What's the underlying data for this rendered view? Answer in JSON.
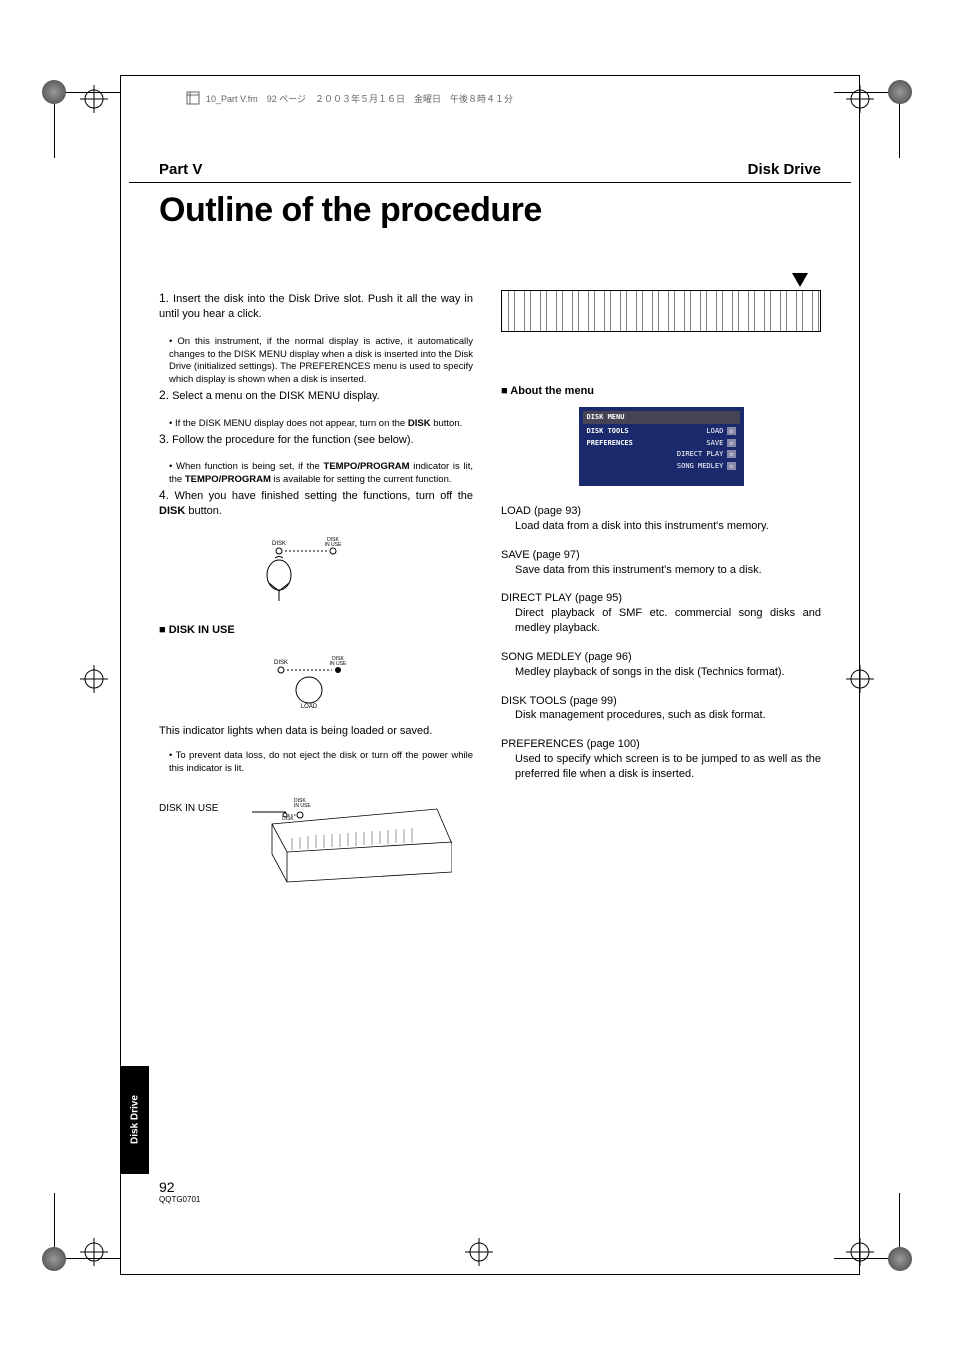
{
  "header": {
    "file_info": "10_Part V.fm　92 ページ　２００３年５月１６日　金曜日　午後８時４１分",
    "part_label": "Part V",
    "section_label": "Disk Drive",
    "title": "Outline of the procedure"
  },
  "steps": [
    {
      "num": "1.",
      "text": "Insert the disk into the Disk Drive slot. Push it all the way in until you hear a click.",
      "bullets": [
        "On this instrument, if the normal display is active, it automatically changes to the DISK MENU display when a disk is inserted into the Disk Drive (initialized settings). The PREFERENCES menu is used to specify which display is shown when a disk is inserted."
      ]
    },
    {
      "num": "2.",
      "text": "Select a menu on the DISK MENU display.",
      "bullets": [
        "If the DISK MENU display does not appear, turn on the <b>DISK</b> button."
      ]
    },
    {
      "num": "3.",
      "text": "Follow the procedure for the function (see below).",
      "bullets": [
        "When function is being set, if the <b>TEMPO/PROGRAM</b> indicator is lit, the <b>TEMPO/PROGRAM</b> is available for setting the current function."
      ]
    },
    {
      "num": "4.",
      "text": "When you have finished setting the functions, turn off the <b>DISK</b> button.",
      "bullets": []
    }
  ],
  "disk_in_use": {
    "heading": "DISK IN USE",
    "desc": "This indicator lights when data is being loaded or saved.",
    "bullet": "To prevent data loss, do not eject the disk or turn off the power while this indicator is lit.",
    "pointer_label": "DISK IN USE"
  },
  "disk_labels": {
    "disk": "DISK",
    "in_use": "DISK\nIN USE",
    "load": "LOAD"
  },
  "about_menu": {
    "heading": "About the menu",
    "menu_title": "DISK MENU",
    "left_items": [
      "DISK TOOLS",
      "PREFERENCES"
    ],
    "right_items": [
      "LOAD",
      "SAVE",
      "DIRECT PLAY",
      "SONG MEDLEY"
    ]
  },
  "menu_items": [
    {
      "title": "LOAD (page 93)",
      "desc": "Load data from a disk into this instrument's memory."
    },
    {
      "title": "SAVE (page 97)",
      "desc": "Save data from this instrument's memory to a disk."
    },
    {
      "title": "DIRECT PLAY (page 95)",
      "desc": "Direct playback of SMF etc. commercial song disks and medley playback."
    },
    {
      "title": "SONG MEDLEY (page 96)",
      "desc": "Medley playback of songs in the disk (Technics format)."
    },
    {
      "title": "DISK TOOLS (page 99)",
      "desc": "Disk management procedures, such as disk format."
    },
    {
      "title": "PREFERENCES (page 100)",
      "desc": "Used to specify which screen is to be jumped to as well as the preferred file when a disk is inserted."
    }
  ],
  "footer": {
    "page_num": "92",
    "doc_code": "QQTG0701",
    "tab_label": "Disk Drive"
  }
}
